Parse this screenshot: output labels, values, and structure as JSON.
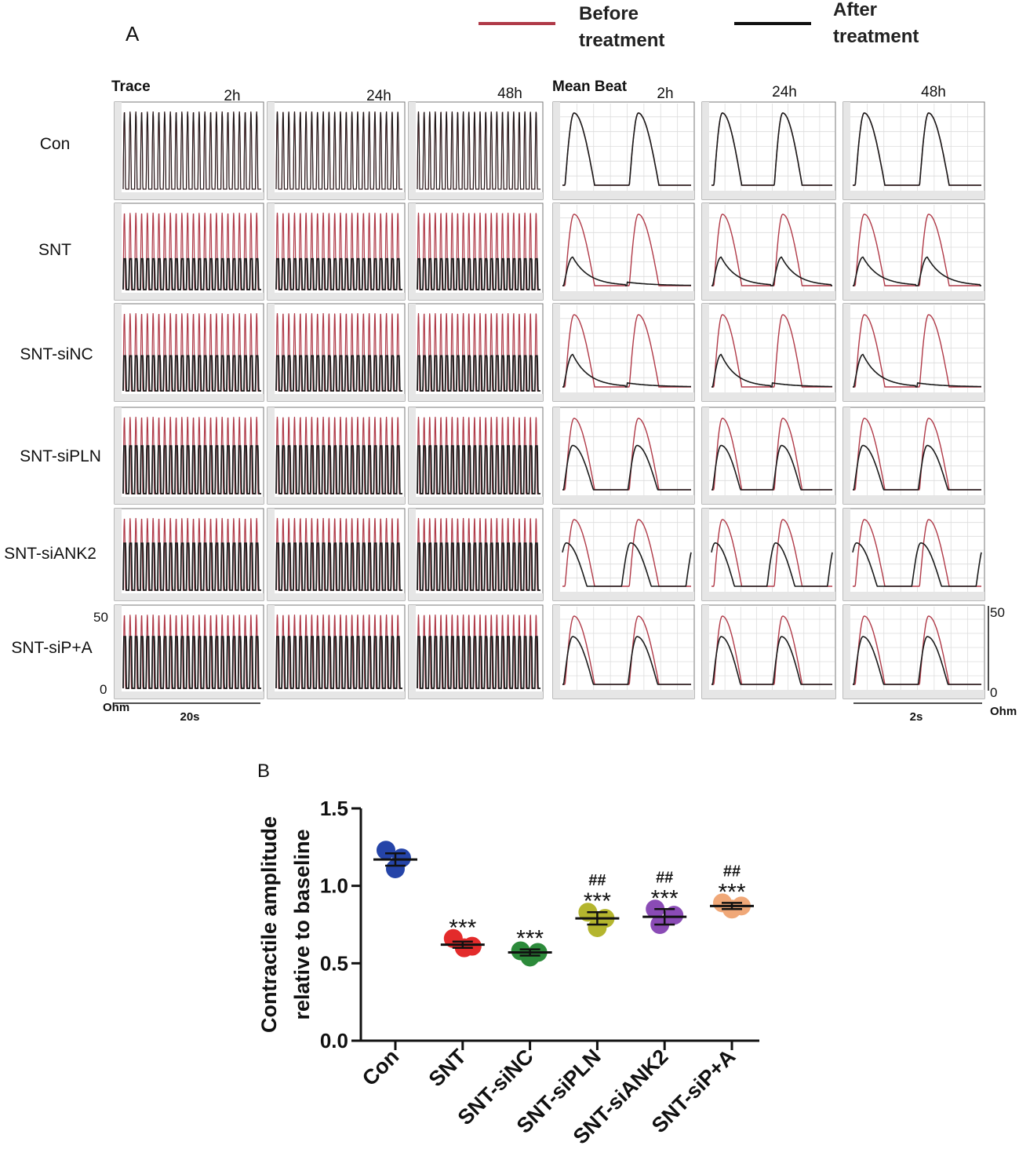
{
  "panel_a": {
    "label": "A",
    "legend": [
      {
        "line1": "Before",
        "line2": "treatment",
        "color": "#b03a48"
      },
      {
        "line1": "After",
        "line2": "treatment",
        "color": "#1a1a1a"
      }
    ],
    "trace_title": "Trace",
    "mean_title": "Mean Beat",
    "times": [
      "2h",
      "24h",
      "48h"
    ],
    "rows": [
      "Con",
      "SNT",
      "SNT-siNC",
      "SNT-siPLN",
      "SNT-siANK2",
      "SNT-siP+A"
    ],
    "after_amplitude": [
      1.0,
      0.4,
      0.45,
      0.62,
      0.65,
      0.7
    ],
    "left_scale": {
      "max": "50",
      "min": "0",
      "unit": "Ohm",
      "time": "20s"
    },
    "right_scale": {
      "max": "50",
      "min": "0",
      "unit": "Ohm",
      "time": "2s"
    }
  },
  "chart_data": {
    "type": "scatter",
    "panel_label": "B",
    "title": "",
    "xlabel": "",
    "ylabel": "Contractile amplitude relative to baseline",
    "ylabel_lines": [
      "Contractile amplitude",
      "relative to baseline"
    ],
    "ylim": [
      0.0,
      1.5
    ],
    "yticks": [
      "0.0",
      "0.5",
      "1.0",
      "1.5"
    ],
    "categories": [
      "Con",
      "SNT",
      "SNT-siNC",
      "SNT-siPLN",
      "SNT-siANK2",
      "SNT-siP+A"
    ],
    "colors": [
      "#2544a8",
      "#e32b2b",
      "#2c8a3a",
      "#b4b52e",
      "#8a4bb5",
      "#f0a878"
    ],
    "points": [
      [
        1.23,
        1.18,
        1.11
      ],
      [
        0.66,
        0.61,
        0.6
      ],
      [
        0.58,
        0.57,
        0.54
      ],
      [
        0.83,
        0.79,
        0.73
      ],
      [
        0.85,
        0.81,
        0.75
      ],
      [
        0.89,
        0.87,
        0.85
      ]
    ],
    "means": [
      1.17,
      0.62,
      0.57,
      0.79,
      0.8,
      0.87
    ],
    "sem": [
      0.04,
      0.02,
      0.02,
      0.04,
      0.05,
      0.02
    ],
    "annot_top": [
      "",
      "",
      "",
      "##",
      "##",
      "##"
    ],
    "annot_bottom": [
      "",
      "***",
      "***",
      "***",
      "***",
      "***"
    ]
  }
}
